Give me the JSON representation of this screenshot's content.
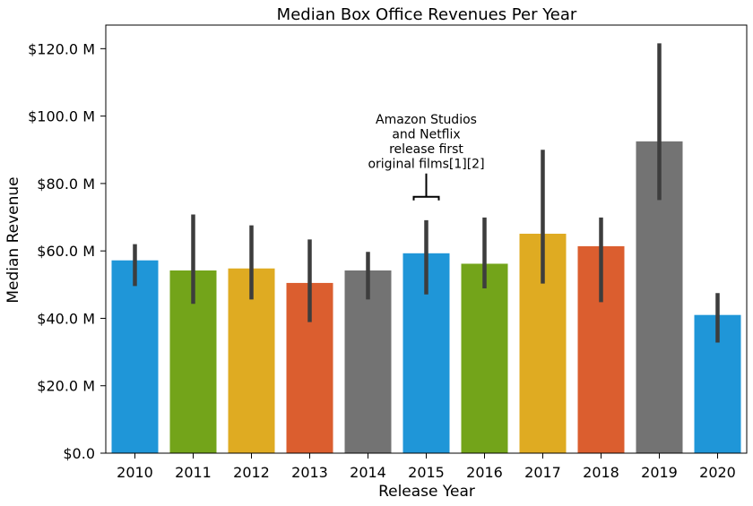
{
  "chart_data": {
    "type": "bar",
    "title": "Median Box Office Revenues Per Year",
    "xlabel": "Release Year",
    "ylabel": "Median Revenue",
    "categories": [
      "2010",
      "2011",
      "2012",
      "2013",
      "2014",
      "2015",
      "2016",
      "2017",
      "2018",
      "2019",
      "2020"
    ],
    "values": [
      57.2,
      54.2,
      54.8,
      50.5,
      54.2,
      59.3,
      56.2,
      65.1,
      61.4,
      92.5,
      41.0
    ],
    "error_low": [
      49.6,
      44.3,
      45.6,
      38.9,
      45.6,
      47.1,
      48.9,
      50.3,
      44.8,
      75.1,
      32.8
    ],
    "error_high": [
      62.0,
      70.8,
      67.6,
      63.4,
      59.7,
      69.1,
      69.9,
      90.0,
      69.9,
      121.6,
      47.5
    ],
    "colors": [
      "#1f96d8",
      "#73a41a",
      "#dfab22",
      "#db5e2f",
      "#737373",
      "#1f96d8",
      "#73a41a",
      "#dfab22",
      "#db5e2f",
      "#737373",
      "#1f96d8"
    ],
    "ylim": [
      0,
      127
    ],
    "y_ticks": [
      0,
      20,
      40,
      60,
      80,
      100,
      120
    ],
    "y_tick_labels": [
      "$0.0",
      "$20.0 M",
      "$40.0 M",
      "$60.0 M",
      "$80.0 M",
      "$100.0 M",
      "$120.0 M"
    ],
    "grid": false,
    "annotation": {
      "category": "2015",
      "value": 75,
      "lines": [
        "Amazon Studios",
        "and Netflix",
        "release first",
        "original films[1][2]"
      ]
    }
  }
}
